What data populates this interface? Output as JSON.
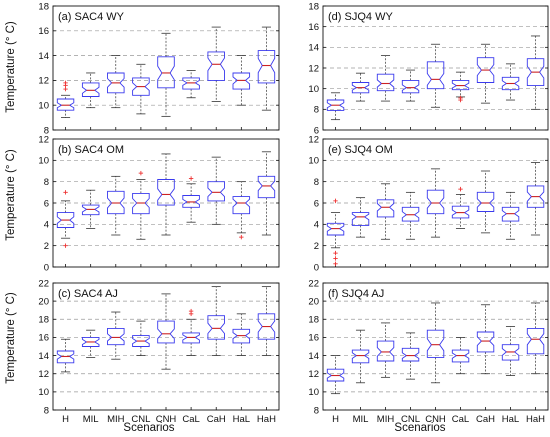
{
  "figure": {
    "ylabel": "Temperature (° C)",
    "xlabel": "Scenarios",
    "categories": [
      "H",
      "MIL",
      "MIH",
      "CNL",
      "CNH",
      "CaL",
      "CaH",
      "HaL",
      "HaH"
    ],
    "colors": {
      "box": "#3a3aee",
      "median": "#cc2222",
      "whisker": "#333333",
      "grid": "#9a9a9a",
      "outlier": "#ee3333"
    }
  },
  "chart_data": [
    {
      "type": "box",
      "title": "(a) SAC4 WY",
      "ylim": [
        8,
        18
      ],
      "yticks": [
        8,
        10,
        12,
        14,
        16,
        18
      ],
      "grid": true,
      "categories": [
        "H",
        "MIL",
        "MIH",
        "CNL",
        "CNH",
        "CaL",
        "CaH",
        "HaL",
        "HaH"
      ],
      "boxes": [
        {
          "min": 9.0,
          "q1": 9.6,
          "median": 10.0,
          "q3": 10.5,
          "max": 10.8,
          "outliers": [
            11.3,
            11.6,
            11.8
          ]
        },
        {
          "min": 9.8,
          "q1": 10.7,
          "median": 11.2,
          "q3": 11.8,
          "max": 12.6,
          "outliers": []
        },
        {
          "min": 9.8,
          "q1": 11.0,
          "median": 11.8,
          "q3": 12.6,
          "max": 14.0,
          "outliers": []
        },
        {
          "min": 9.3,
          "q1": 10.8,
          "median": 11.5,
          "q3": 12.2,
          "max": 13.3,
          "outliers": []
        },
        {
          "min": 9.1,
          "q1": 11.4,
          "median": 12.6,
          "q3": 13.9,
          "max": 15.8,
          "outliers": []
        },
        {
          "min": 10.6,
          "q1": 11.3,
          "median": 11.8,
          "q3": 12.2,
          "max": 12.8,
          "outliers": []
        },
        {
          "min": 10.3,
          "q1": 12.0,
          "median": 13.3,
          "q3": 14.3,
          "max": 16.3,
          "outliers": []
        },
        {
          "min": 10.0,
          "q1": 11.3,
          "median": 12.0,
          "q3": 12.6,
          "max": 14.0,
          "outliers": []
        },
        {
          "min": 9.6,
          "q1": 11.8,
          "median": 13.2,
          "q3": 14.4,
          "max": 16.3,
          "outliers": []
        }
      ]
    },
    {
      "type": "box",
      "title": "(d) SJQ4 WY",
      "ylim": [
        6,
        18
      ],
      "yticks": [
        6,
        8,
        10,
        12,
        14,
        16,
        18
      ],
      "grid": true,
      "categories": [
        "H",
        "MIL",
        "MIH",
        "CNL",
        "CNH",
        "CaL",
        "CaH",
        "HaL",
        "HaH"
      ],
      "boxes": [
        {
          "min": 7.0,
          "q1": 7.9,
          "median": 8.4,
          "q3": 8.9,
          "max": 9.6,
          "outliers": []
        },
        {
          "min": 8.8,
          "q1": 9.6,
          "median": 10.1,
          "q3": 10.6,
          "max": 11.5,
          "outliers": []
        },
        {
          "min": 8.8,
          "q1": 9.8,
          "median": 10.5,
          "q3": 11.4,
          "max": 13.2,
          "outliers": []
        },
        {
          "min": 8.8,
          "q1": 9.6,
          "median": 10.1,
          "q3": 10.8,
          "max": 11.8,
          "outliers": []
        },
        {
          "min": 8.2,
          "q1": 10.0,
          "median": 10.9,
          "q3": 12.6,
          "max": 14.3,
          "outliers": []
        },
        {
          "min": 9.2,
          "q1": 9.9,
          "median": 10.3,
          "q3": 10.8,
          "max": 11.6,
          "outliers": [
            8.9,
            9.1
          ]
        },
        {
          "min": 8.6,
          "q1": 10.6,
          "median": 11.8,
          "q3": 13.0,
          "max": 14.3,
          "outliers": []
        },
        {
          "min": 8.9,
          "q1": 9.9,
          "median": 10.5,
          "q3": 11.1,
          "max": 12.4,
          "outliers": []
        },
        {
          "min": 8.0,
          "q1": 10.3,
          "median": 11.6,
          "q3": 12.9,
          "max": 15.1,
          "outliers": []
        }
      ]
    },
    {
      "type": "box",
      "title": "(b) SAC4 OM",
      "ylim": [
        0,
        12
      ],
      "yticks": [
        0,
        2,
        4,
        6,
        8,
        10,
        12
      ],
      "grid": true,
      "categories": [
        "H",
        "MIL",
        "MIH",
        "CNL",
        "CNH",
        "CaL",
        "CaH",
        "HaL",
        "HaH"
      ],
      "boxes": [
        {
          "min": 2.7,
          "q1": 3.7,
          "median": 4.4,
          "q3": 5.1,
          "max": 6.2,
          "outliers": [
            7.0,
            2.0
          ]
        },
        {
          "min": 3.6,
          "q1": 4.9,
          "median": 5.4,
          "q3": 5.8,
          "max": 7.2,
          "outliers": []
        },
        {
          "min": 3.0,
          "q1": 5.0,
          "median": 6.0,
          "q3": 7.1,
          "max": 8.5,
          "outliers": []
        },
        {
          "min": 2.6,
          "q1": 5.0,
          "median": 6.0,
          "q3": 6.9,
          "max": 8.2,
          "outliers": [
            8.8
          ]
        },
        {
          "min": 3.0,
          "q1": 5.8,
          "median": 6.8,
          "q3": 8.2,
          "max": 10.6,
          "outliers": []
        },
        {
          "min": 4.2,
          "q1": 5.6,
          "median": 6.1,
          "q3": 6.7,
          "max": 7.8,
          "outliers": [
            8.3
          ]
        },
        {
          "min": 4.0,
          "q1": 6.2,
          "median": 7.0,
          "q3": 8.0,
          "max": 10.3,
          "outliers": []
        },
        {
          "min": 3.2,
          "q1": 5.0,
          "median": 6.0,
          "q3": 6.6,
          "max": 8.0,
          "outliers": [
            2.8
          ]
        },
        {
          "min": 3.0,
          "q1": 6.5,
          "median": 7.6,
          "q3": 8.5,
          "max": 10.8,
          "outliers": []
        }
      ]
    },
    {
      "type": "box",
      "title": "(e) SJQ4 OM",
      "ylim": [
        0,
        12
      ],
      "yticks": [
        0,
        2,
        4,
        6,
        8,
        10,
        12
      ],
      "grid": true,
      "categories": [
        "H",
        "MIL",
        "MIH",
        "CNL",
        "CNH",
        "CaL",
        "CaH",
        "HaL",
        "HaH"
      ],
      "boxes": [
        {
          "min": 1.8,
          "q1": 3.0,
          "median": 3.6,
          "q3": 4.1,
          "max": 5.1,
          "outliers": [
            6.2,
            1.3,
            0.8,
            0.3
          ]
        },
        {
          "min": 2.8,
          "q1": 3.9,
          "median": 4.7,
          "q3": 5.1,
          "max": 6.5,
          "outliers": []
        },
        {
          "min": 2.6,
          "q1": 4.7,
          "median": 5.6,
          "q3": 6.3,
          "max": 7.8,
          "outliers": []
        },
        {
          "min": 2.6,
          "q1": 4.3,
          "median": 4.9,
          "q3": 5.6,
          "max": 7.0,
          "outliers": []
        },
        {
          "min": 2.8,
          "q1": 5.0,
          "median": 6.0,
          "q3": 7.2,
          "max": 9.2,
          "outliers": []
        },
        {
          "min": 3.6,
          "q1": 4.6,
          "median": 5.1,
          "q3": 5.7,
          "max": 6.8,
          "outliers": [
            7.3
          ]
        },
        {
          "min": 3.2,
          "q1": 5.2,
          "median": 6.0,
          "q3": 7.0,
          "max": 9.0,
          "outliers": []
        },
        {
          "min": 2.6,
          "q1": 4.3,
          "median": 5.0,
          "q3": 5.6,
          "max": 7.0,
          "outliers": []
        },
        {
          "min": 3.0,
          "q1": 5.6,
          "median": 6.6,
          "q3": 7.6,
          "max": 9.8,
          "outliers": []
        }
      ]
    },
    {
      "type": "box",
      "title": "(c) SAC4 AJ",
      "ylim": [
        8,
        22
      ],
      "yticks": [
        8,
        10,
        12,
        14,
        16,
        18,
        20,
        22
      ],
      "grid": true,
      "categories": [
        "H",
        "MIL",
        "MIH",
        "CNL",
        "CNH",
        "CaL",
        "CaH",
        "HaL",
        "HaH"
      ],
      "boxes": [
        {
          "min": 12.2,
          "q1": 13.2,
          "median": 13.9,
          "q3": 14.5,
          "max": 15.8,
          "outliers": []
        },
        {
          "min": 13.8,
          "q1": 15.0,
          "median": 15.5,
          "q3": 16.0,
          "max": 16.8,
          "outliers": []
        },
        {
          "min": 13.6,
          "q1": 15.2,
          "median": 16.0,
          "q3": 17.0,
          "max": 18.8,
          "outliers": []
        },
        {
          "min": 14.0,
          "q1": 15.0,
          "median": 15.6,
          "q3": 16.2,
          "max": 17.8,
          "outliers": []
        },
        {
          "min": 12.5,
          "q1": 15.4,
          "median": 16.4,
          "q3": 17.8,
          "max": 20.8,
          "outliers": []
        },
        {
          "min": 14.0,
          "q1": 15.4,
          "median": 16.0,
          "q3": 16.5,
          "max": 18.0,
          "outliers": [
            18.6,
            18.9
          ]
        },
        {
          "min": 14.0,
          "q1": 15.8,
          "median": 17.0,
          "q3": 18.4,
          "max": 21.6,
          "outliers": []
        },
        {
          "min": 14.0,
          "q1": 15.4,
          "median": 16.2,
          "q3": 16.9,
          "max": 18.6,
          "outliers": []
        },
        {
          "min": 14.0,
          "q1": 15.8,
          "median": 17.2,
          "q3": 18.6,
          "max": 21.6,
          "outliers": []
        }
      ]
    },
    {
      "type": "box",
      "title": "(f) SJQ4 AJ",
      "ylim": [
        8,
        22
      ],
      "yticks": [
        8,
        10,
        12,
        14,
        16,
        18,
        20,
        22
      ],
      "grid": true,
      "categories": [
        "H",
        "MIL",
        "MIH",
        "CNL",
        "CNH",
        "CaL",
        "CaH",
        "HaL",
        "HaH"
      ],
      "boxes": [
        {
          "min": 9.8,
          "q1": 11.2,
          "median": 11.8,
          "q3": 12.5,
          "max": 14.0,
          "outliers": []
        },
        {
          "min": 11.0,
          "q1": 13.2,
          "median": 14.0,
          "q3": 14.6,
          "max": 16.8,
          "outliers": []
        },
        {
          "min": 11.6,
          "q1": 13.4,
          "median": 14.4,
          "q3": 15.6,
          "max": 17.6,
          "outliers": []
        },
        {
          "min": 11.4,
          "q1": 13.4,
          "median": 14.0,
          "q3": 14.8,
          "max": 16.5,
          "outliers": []
        },
        {
          "min": 11.0,
          "q1": 13.8,
          "median": 15.2,
          "q3": 16.8,
          "max": 19.8,
          "outliers": []
        },
        {
          "min": 12.0,
          "q1": 13.3,
          "median": 14.0,
          "q3": 14.6,
          "max": 16.0,
          "outliers": []
        },
        {
          "min": 12.0,
          "q1": 14.4,
          "median": 15.6,
          "q3": 16.6,
          "max": 19.6,
          "outliers": []
        },
        {
          "min": 11.8,
          "q1": 13.5,
          "median": 14.4,
          "q3": 15.2,
          "max": 17.2,
          "outliers": []
        },
        {
          "min": 12.0,
          "q1": 14.2,
          "median": 15.8,
          "q3": 17.0,
          "max": 19.8,
          "outliers": []
        }
      ]
    }
  ]
}
